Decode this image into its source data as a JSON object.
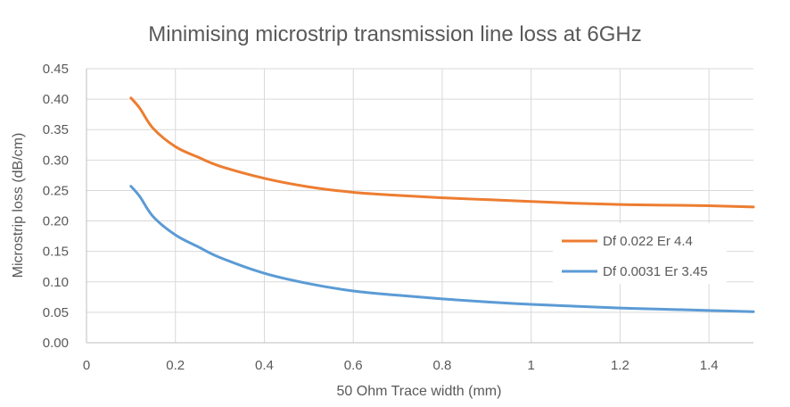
{
  "chart_data": {
    "type": "line",
    "title": "Minimising microstrip transmission line loss at 6GHz",
    "xlabel": "50 Ohm Trace width (mm)",
    "ylabel": "Microstrip loss (dB/cm)",
    "xlim": [
      0,
      1.5
    ],
    "ylim": [
      0,
      0.45
    ],
    "x_ticks": [
      0,
      0.2,
      0.4,
      0.6,
      0.8,
      1,
      1.2,
      1.4
    ],
    "x_tick_labels": [
      "0",
      "0.2",
      "0.4",
      "0.6",
      "0.8",
      "1",
      "1.2",
      "1.4"
    ],
    "y_ticks": [
      0,
      0.05,
      0.1,
      0.15,
      0.2,
      0.25,
      0.3,
      0.35,
      0.4,
      0.45
    ],
    "y_tick_labels": [
      "0.00",
      "0.05",
      "0.10",
      "0.15",
      "0.20",
      "0.25",
      "0.30",
      "0.35",
      "0.40",
      "0.45"
    ],
    "grid": true,
    "legend_position": "right",
    "x": [
      0.1,
      0.12,
      0.15,
      0.2,
      0.25,
      0.3,
      0.4,
      0.5,
      0.6,
      0.7,
      0.8,
      0.9,
      1.0,
      1.1,
      1.2,
      1.3,
      1.4,
      1.5
    ],
    "series": [
      {
        "name": "Df 0.022 Er 4.4",
        "color": "#ED7D31",
        "values": [
          0.402,
          0.385,
          0.352,
          0.322,
          0.305,
          0.29,
          0.27,
          0.256,
          0.247,
          0.242,
          0.238,
          0.235,
          0.232,
          0.229,
          0.227,
          0.226,
          0.225,
          0.223
        ]
      },
      {
        "name": "Df 0.0031 Er 3.45",
        "color": "#5B9BD5",
        "values": [
          0.257,
          0.24,
          0.207,
          0.177,
          0.158,
          0.14,
          0.114,
          0.097,
          0.085,
          0.078,
          0.072,
          0.067,
          0.063,
          0.06,
          0.057,
          0.055,
          0.053,
          0.051
        ]
      }
    ]
  }
}
